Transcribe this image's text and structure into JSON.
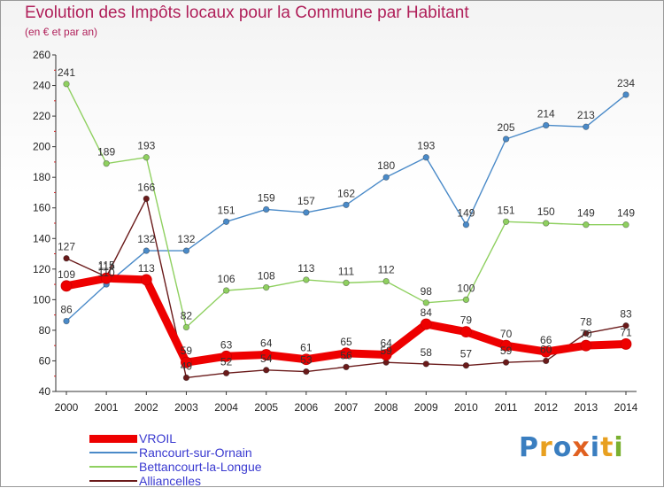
{
  "title": "Evolution des Impôts locaux pour la Commune par Habitant",
  "subtitle": "(en € et par an)",
  "logo": {
    "text": "Proxiti",
    "colors": [
      "#3a7ec0",
      "#e8a020",
      "#3a7ec0",
      "#e06020",
      "#3a7ec0",
      "#e8a020",
      "#7ab030"
    ]
  },
  "chart_data": {
    "type": "line",
    "x": [
      "2000",
      "2001",
      "2002",
      "2003",
      "2004",
      "2005",
      "2006",
      "2007",
      "2008",
      "2009",
      "2010",
      "2011",
      "2012",
      "2013",
      "2014"
    ],
    "ylim": [
      40,
      260
    ],
    "yticks": [
      "40",
      "60",
      "80",
      "100",
      "120",
      "140",
      "160",
      "180",
      "200",
      "220",
      "240",
      "260"
    ],
    "grid": false,
    "legend_position": "bottom-left",
    "series": [
      {
        "name": "Rancourt-sur-Ornain",
        "color": "#4a8ac8",
        "values": [
          86,
          110,
          132,
          132,
          151,
          159,
          157,
          162,
          180,
          193,
          149,
          205,
          214,
          213,
          234
        ],
        "labels": [
          "86",
          "110",
          "132",
          "132",
          "151",
          "159",
          "157",
          "162",
          "180",
          "193",
          "149",
          "205",
          "214",
          "213",
          "234"
        ]
      },
      {
        "name": "Bettancourt-la-Longue",
        "color": "#8fd060",
        "values": [
          241,
          189,
          193,
          82,
          106,
          108,
          113,
          111,
          112,
          98,
          100,
          151,
          150,
          149,
          149
        ],
        "labels": [
          "241",
          "189",
          "193",
          "82",
          "106",
          "108",
          "113",
          "111",
          "112",
          "98",
          "100",
          "151",
          "150",
          "149",
          "149"
        ]
      },
      {
        "name": "Alliancelles",
        "color": "#6a1a1a",
        "values": [
          127,
          115,
          166,
          49,
          52,
          54,
          53,
          56,
          59,
          58,
          57,
          59,
          60,
          78,
          83
        ],
        "labels": [
          "127",
          "115",
          "166",
          "49",
          "52",
          "54",
          "53",
          "56",
          "59",
          "58",
          "57",
          "59",
          "60",
          "78",
          "83"
        ]
      },
      {
        "name": "VROIL",
        "color": "#ee0000",
        "values": [
          109,
          114,
          113,
          59,
          63,
          64,
          61,
          65,
          64,
          84,
          79,
          70,
          66,
          70,
          71
        ],
        "labels": [
          "109",
          "114",
          "113",
          "59",
          "63",
          "64",
          "61",
          "65",
          "64",
          "84",
          "79",
          "70",
          "66",
          "70",
          "71"
        ]
      }
    ]
  }
}
